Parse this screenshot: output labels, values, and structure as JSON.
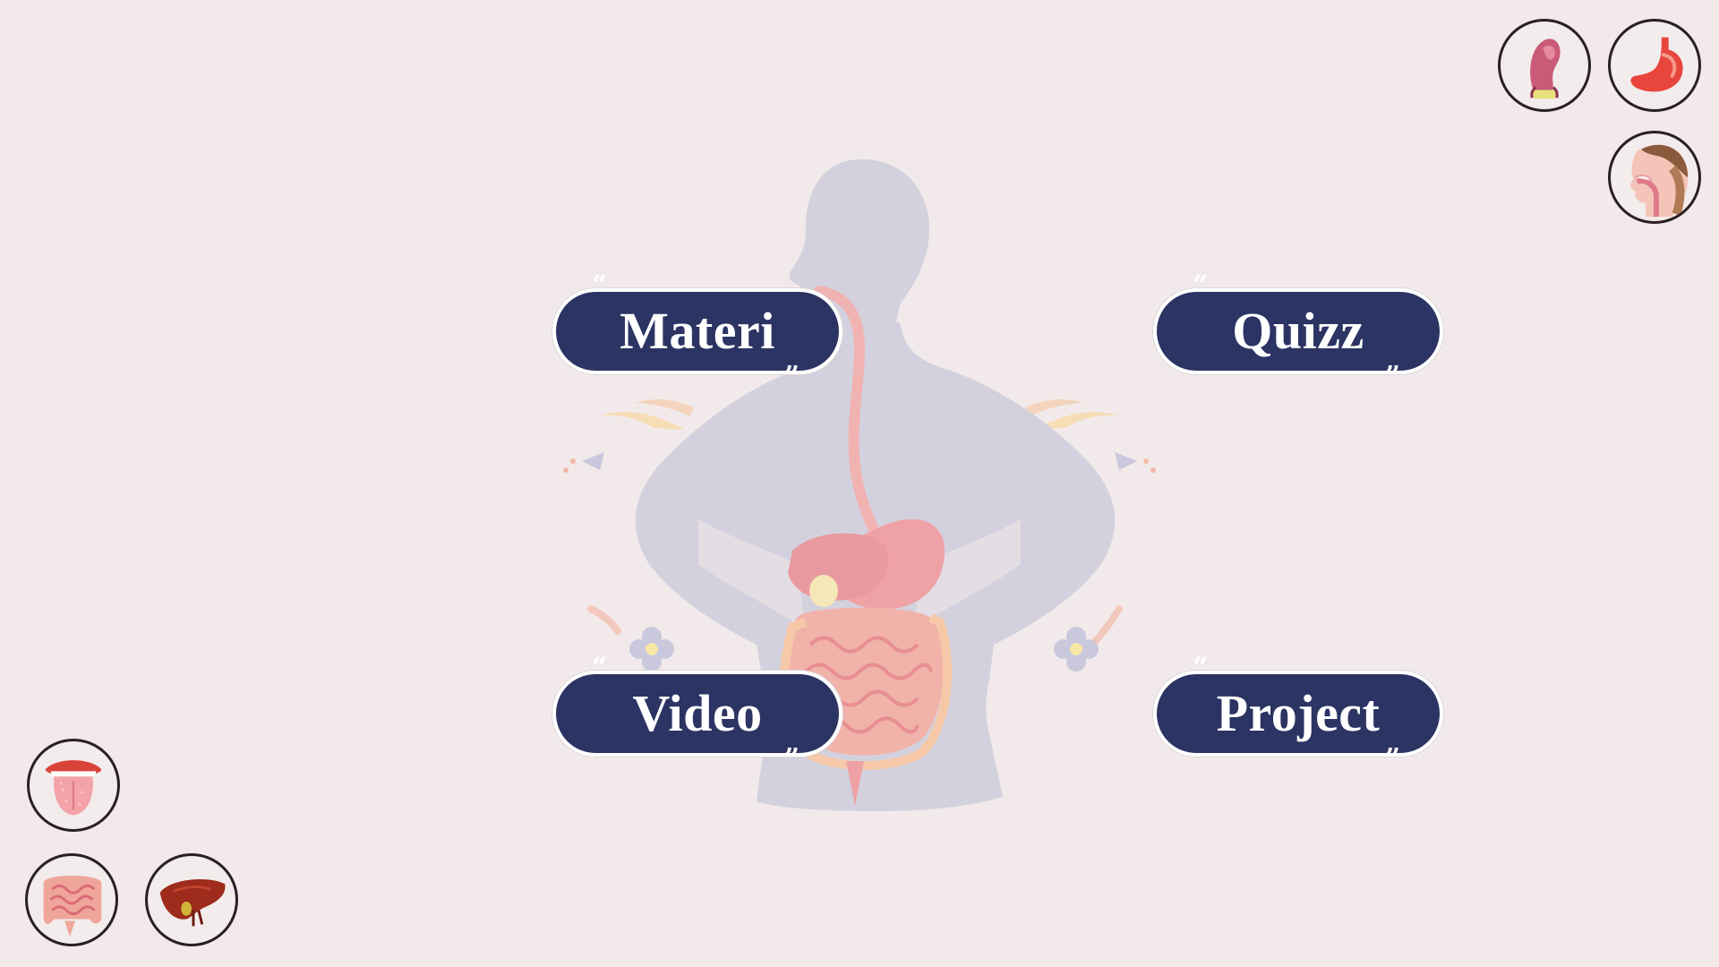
{
  "menu": {
    "materi": "Materi",
    "quizz": "Quizz",
    "video": "Video",
    "project": "Project",
    "quote_open": "“",
    "quote_close": "”"
  },
  "organs": [
    {
      "icon": "rectum-icon"
    },
    {
      "icon": "stomach-icon"
    },
    {
      "icon": "head-throat-icon"
    },
    {
      "icon": "mouth-tongue-icon"
    },
    {
      "icon": "intestine-icon"
    },
    {
      "icon": "liver-icon"
    }
  ],
  "colors": {
    "background": "#f2eaea",
    "button": "#2b3463",
    "button_text": "#ffffff",
    "silhouette": "#d3d1de",
    "organ_pink": "#f0a7a6"
  }
}
